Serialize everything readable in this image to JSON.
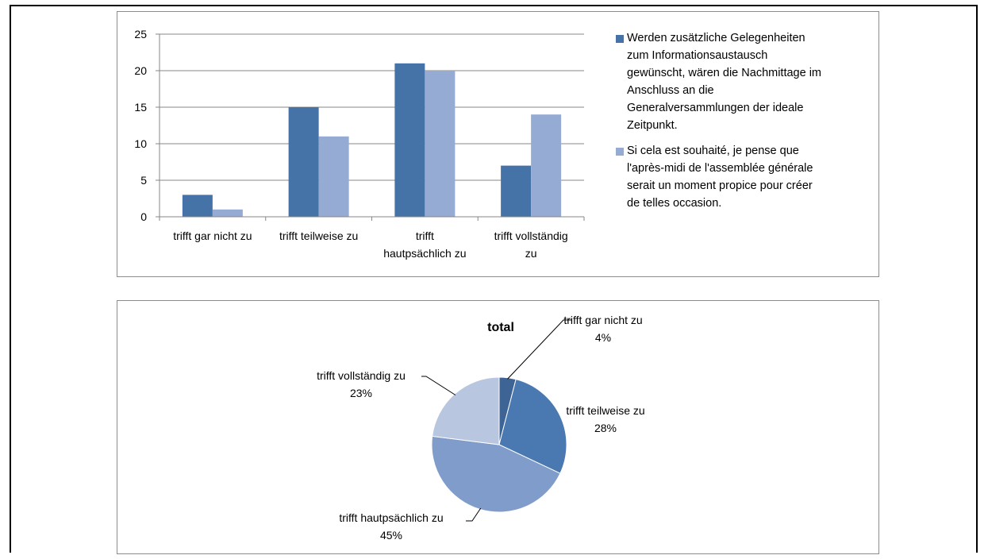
{
  "colors": {
    "series1": "#4573a7",
    "series2": "#96abd3",
    "pie": [
      "#3e6496",
      "#4a78b1",
      "#7f9ccb",
      "#b8c6e0"
    ],
    "grid": "#878787",
    "frame": "#8c8c8c"
  },
  "chart_data": [
    {
      "type": "bar",
      "categories": [
        "trifft gar nicht zu",
        "trifft teilweise zu",
        "trifft hautpsächlich zu",
        "trifft vollständig zu"
      ],
      "category_lines": [
        [
          "trifft gar nicht zu"
        ],
        [
          "trifft teilweise zu"
        ],
        [
          "trifft",
          "hautpsächlich zu"
        ],
        [
          "trifft vollständig",
          "zu"
        ]
      ],
      "series": [
        {
          "name": "Werden zusätzliche Gelegenheiten zum Informationsaustausch gewünscht, wären die Nachmittage im Anschluss an die Generalversammlungen der ideale Zeitpunkt.",
          "values": [
            3,
            15,
            21,
            7
          ]
        },
        {
          "name": "Si cela est souhaité, je pense que l'après-midi de l'assemblée générale serait un moment propice pour créer de telles occasion.",
          "values": [
            1,
            11,
            20,
            14
          ]
        }
      ],
      "ylim": [
        0,
        25
      ],
      "yticks": [
        "0",
        "5",
        "10",
        "15",
        "20",
        "25"
      ],
      "grid": true,
      "legend_position": "right",
      "legend_lines": [
        [
          "Werden zusätzliche Gelegenheiten",
          "zum Informationsaustausch",
          "gewünscht, wären die Nachmittage im",
          "Anschluss an die",
          "Generalversammlungen der ideale",
          "Zeitpunkt."
        ],
        [
          "Si cela est souhaité, je pense que",
          "l'après-midi de l'assemblée générale",
          "serait un moment propice pour créer",
          "de telles occasion."
        ]
      ]
    },
    {
      "type": "pie",
      "title": "total",
      "labels": [
        "trifft gar nicht zu",
        "trifft teilweise zu",
        "trifft hautpsächlich zu",
        "trifft vollständig zu"
      ],
      "values": [
        4,
        28,
        45,
        23
      ],
      "value_labels": [
        "4%",
        "28%",
        "45%",
        "23%"
      ]
    }
  ]
}
